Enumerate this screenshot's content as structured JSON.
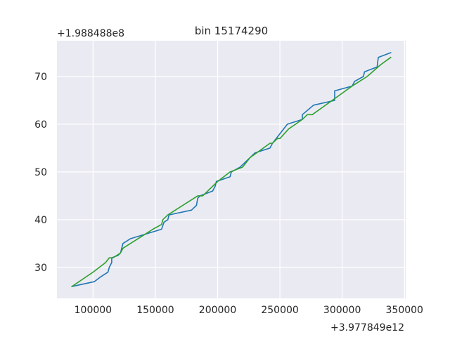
{
  "chart_data": {
    "type": "line",
    "title": "bin 15174290",
    "xlabel": "",
    "ylabel": "",
    "x_offset_label": "+3.977849e12",
    "y_offset_label": "+1.988488e8",
    "xlim": [
      71000,
      351000
    ],
    "ylim": [
      23.5,
      77.5
    ],
    "x_ticks": [
      100000,
      150000,
      200000,
      250000,
      300000,
      350000
    ],
    "x_tick_labels": [
      "100000",
      "150000",
      "200000",
      "250000",
      "300000",
      "350000"
    ],
    "y_ticks": [
      30,
      40,
      50,
      60,
      70
    ],
    "y_tick_labels": [
      "30",
      "40",
      "50",
      "60",
      "70"
    ],
    "grid": true,
    "legend": "none",
    "background": "#eaeaf2",
    "series": [
      {
        "color": "#1f77b4",
        "x": [
          83000,
          101000,
          106000,
          112000,
          113000,
          115000,
          115000,
          120000,
          122000,
          124000,
          130000,
          155000,
          157000,
          160000,
          161000,
          179000,
          183000,
          184000,
          186000,
          196000,
          198000,
          199000,
          210000,
          211000,
          218000,
          222000,
          230000,
          242000,
          244000,
          250000,
          256000,
          268000,
          268000,
          277000,
          294000,
          294000,
          308000,
          310000,
          317000,
          318000,
          328000,
          329000,
          339000
        ],
        "y": [
          26,
          27,
          28,
          29,
          30,
          31,
          32,
          32.5,
          33,
          35,
          36,
          38,
          39.5,
          40,
          41,
          42,
          43,
          44.5,
          45,
          46,
          47,
          48,
          49,
          50,
          51,
          52,
          54,
          55,
          56,
          58,
          60,
          61,
          62,
          64,
          65,
          67,
          68,
          69,
          70,
          71,
          72,
          74,
          75
        ]
      },
      {
        "color": "#2ca02c",
        "x": [
          83000,
          100000,
          110000,
          113000,
          116000,
          122000,
          124000,
          130000,
          142000,
          148000,
          155000,
          156000,
          160000,
          184000,
          188000,
          200000,
          210000,
          220000,
          226000,
          242000,
          244000,
          248000,
          250000,
          257000,
          268000,
          272000,
          276000,
          292000,
          308000,
          320000,
          331000,
          339000
        ],
        "y": [
          26,
          29,
          31,
          32,
          32,
          33,
          34,
          35,
          37,
          38,
          39,
          40,
          41,
          45,
          45,
          48,
          50,
          51,
          53,
          56,
          56,
          57,
          57,
          59,
          61,
          62,
          62,
          65,
          68,
          70,
          72.5,
          74
        ]
      }
    ]
  }
}
